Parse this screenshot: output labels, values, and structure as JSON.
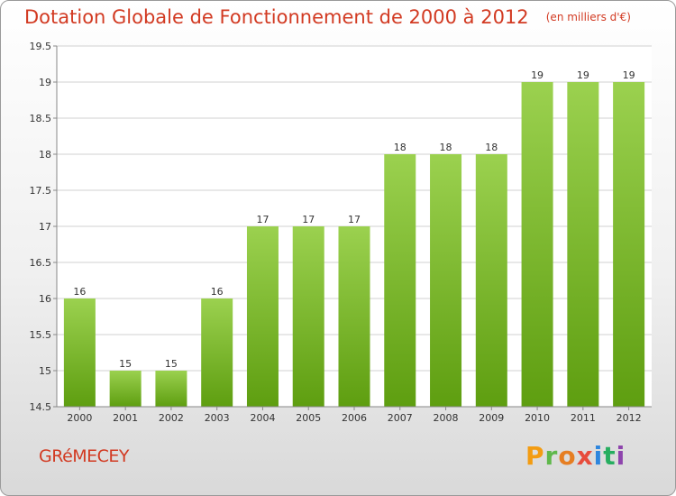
{
  "header": {
    "title": "Dotation Globale de Fonctionnement de 2000 à 2012",
    "unit": "(en milliers d'€)"
  },
  "footer": {
    "commune": "GRéMECEY",
    "brand": [
      "P",
      "r",
      "o",
      "x",
      "i",
      "t",
      "i"
    ]
  },
  "colors": {
    "title": "#d23a22",
    "bar_top": "#9bd14f",
    "bar_bottom": "#5e9e10",
    "grid": "#d2d2d2",
    "axis": "#888888"
  },
  "chart_data": {
    "type": "bar",
    "title": "Dotation Globale de Fonctionnement de 2000 à 2012",
    "categories": [
      "2000",
      "2001",
      "2002",
      "2003",
      "2004",
      "2005",
      "2006",
      "2007",
      "2008",
      "2009",
      "2010",
      "2011",
      "2012"
    ],
    "values": [
      16,
      15,
      15,
      16,
      17,
      17,
      17,
      18,
      18,
      18,
      19,
      19,
      19
    ],
    "data_labels": [
      "16",
      "15",
      "15",
      "16",
      "17",
      "17",
      "17",
      "18",
      "18",
      "18",
      "19",
      "19",
      "19"
    ],
    "yticks": [
      "14.5",
      "15",
      "15.5",
      "16",
      "16.5",
      "17",
      "17.5",
      "18",
      "18.5",
      "19",
      "19.5"
    ],
    "ylim": [
      14.5,
      19.5
    ],
    "grid": true,
    "legend": "none"
  }
}
